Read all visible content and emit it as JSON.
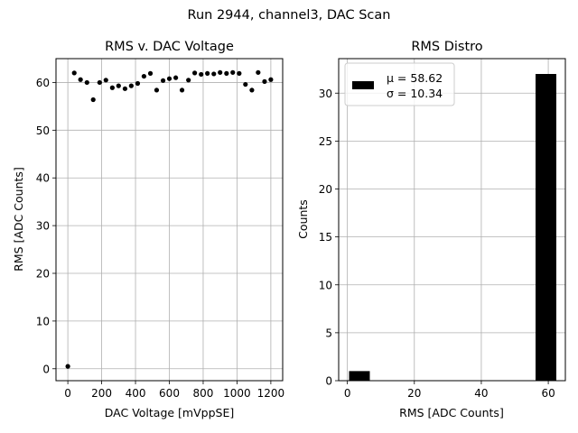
{
  "figure": {
    "suptitle": "Run 2944, channel3, DAC Scan"
  },
  "chart_data": [
    {
      "type": "scatter",
      "title": "RMS v. DAC Voltage",
      "xlabel": "DAC Voltage [mVppSE]",
      "ylabel": "RMS [ADC Counts]",
      "xlim": [
        -70,
        1270
      ],
      "ylim": [
        -2.5,
        65
      ],
      "xticks": [
        0,
        200,
        400,
        600,
        800,
        1000,
        1200
      ],
      "yticks": [
        0,
        10,
        20,
        30,
        40,
        50,
        60
      ],
      "grid": true,
      "marker_color": "#000000",
      "points": [
        {
          "x": 0,
          "y": 0.5
        },
        {
          "x": 38,
          "y": 62.0
        },
        {
          "x": 75,
          "y": 60.6
        },
        {
          "x": 113,
          "y": 60.0
        },
        {
          "x": 150,
          "y": 56.4
        },
        {
          "x": 188,
          "y": 60.0
        },
        {
          "x": 225,
          "y": 60.5
        },
        {
          "x": 263,
          "y": 58.9
        },
        {
          "x": 300,
          "y": 59.3
        },
        {
          "x": 338,
          "y": 58.7
        },
        {
          "x": 375,
          "y": 59.3
        },
        {
          "x": 413,
          "y": 59.8
        },
        {
          "x": 450,
          "y": 61.3
        },
        {
          "x": 488,
          "y": 61.9
        },
        {
          "x": 525,
          "y": 58.4
        },
        {
          "x": 563,
          "y": 60.4
        },
        {
          "x": 600,
          "y": 60.8
        },
        {
          "x": 638,
          "y": 61.0
        },
        {
          "x": 675,
          "y": 58.4
        },
        {
          "x": 713,
          "y": 60.5
        },
        {
          "x": 750,
          "y": 62.0
        },
        {
          "x": 788,
          "y": 61.7
        },
        {
          "x": 825,
          "y": 61.9
        },
        {
          "x": 863,
          "y": 61.8
        },
        {
          "x": 900,
          "y": 62.1
        },
        {
          "x": 938,
          "y": 61.9
        },
        {
          "x": 975,
          "y": 62.1
        },
        {
          "x": 1013,
          "y": 61.9
        },
        {
          "x": 1050,
          "y": 59.6
        },
        {
          "x": 1088,
          "y": 58.4
        },
        {
          "x": 1125,
          "y": 62.1
        },
        {
          "x": 1163,
          "y": 60.2
        },
        {
          "x": 1200,
          "y": 60.6
        }
      ]
    },
    {
      "type": "bar",
      "subtype": "histogram",
      "title": "RMS Distro",
      "xlabel": "RMS [ADC Counts]",
      "ylabel": "Counts",
      "xlim": [
        -2.6,
        65.1
      ],
      "ylim": [
        0,
        33.6
      ],
      "xticks": [
        0,
        20,
        40,
        60
      ],
      "yticks": [
        0,
        5,
        10,
        15,
        20,
        25,
        30
      ],
      "grid": true,
      "bar_color": "#000000",
      "bins": [
        {
          "x0": 0.5,
          "x1": 6.7,
          "count": 1
        },
        {
          "x0": 6.7,
          "x1": 12.9,
          "count": 0
        },
        {
          "x0": 12.9,
          "x1": 19.1,
          "count": 0
        },
        {
          "x0": 19.1,
          "x1": 25.3,
          "count": 0
        },
        {
          "x0": 25.3,
          "x1": 31.5,
          "count": 0
        },
        {
          "x0": 31.5,
          "x1": 37.6,
          "count": 0
        },
        {
          "x0": 37.6,
          "x1": 43.8,
          "count": 0
        },
        {
          "x0": 43.8,
          "x1": 50.0,
          "count": 0
        },
        {
          "x0": 50.0,
          "x1": 56.2,
          "count": 0
        },
        {
          "x0": 56.2,
          "x1": 62.4,
          "count": 32
        }
      ],
      "legend": {
        "position": "upper left",
        "mu_label": "μ = 58.62",
        "sigma_label": "σ = 10.34"
      }
    }
  ]
}
